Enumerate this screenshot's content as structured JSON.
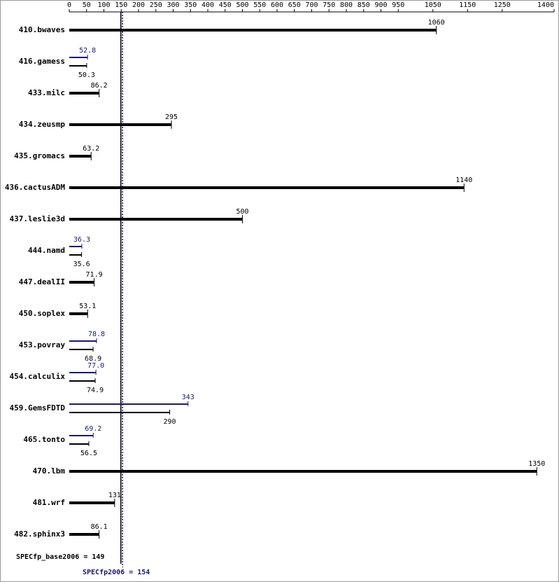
{
  "chart_data": {
    "type": "bar",
    "orientation": "horizontal",
    "categories": [
      "410.bwaves",
      "416.gamess",
      "433.milc",
      "434.zeusmp",
      "435.gromacs",
      "436.cactusADM",
      "437.leslie3d",
      "444.namd",
      "447.dealII",
      "450.soplex",
      "453.povray",
      "454.calculix",
      "459.GemsFDTD",
      "465.tonto",
      "470.lbm",
      "481.wrf",
      "482.sphinx3"
    ],
    "series": [
      {
        "color": "#000000",
        "values": [
          1060,
          50.3,
          86.2,
          295,
          63.2,
          1140,
          500,
          35.6,
          71.9,
          53.1,
          68.9,
          74.9,
          290,
          56.5,
          1350,
          131,
          86.1
        ]
      },
      {
        "color": "#191970",
        "values": [
          null,
          52.8,
          null,
          null,
          null,
          null,
          null,
          36.3,
          null,
          null,
          78.8,
          77.0,
          343,
          69.2,
          null,
          null,
          null
        ],
        "value_labels": [
          null,
          "52.8",
          null,
          null,
          null,
          null,
          null,
          "36.3",
          null,
          null,
          "78.8",
          "77.0",
          "343",
          "69.2",
          null,
          null,
          null
        ]
      }
    ],
    "xlim": [
      0,
      1400
    ],
    "xticks": [
      0,
      50,
      100,
      150,
      200,
      250,
      300,
      350,
      400,
      450,
      500,
      550,
      600,
      650,
      700,
      750,
      800,
      850,
      900,
      950,
      1050,
      1150,
      1250,
      1400
    ],
    "reference_lines": [
      {
        "label": "SPECfp_base2006 = 149",
        "value": 149,
        "color": "#000000",
        "style": "solid"
      },
      {
        "label": "SPECfp2006 = 154",
        "value": 154,
        "color": "#191970",
        "style": "dotted"
      }
    ]
  }
}
